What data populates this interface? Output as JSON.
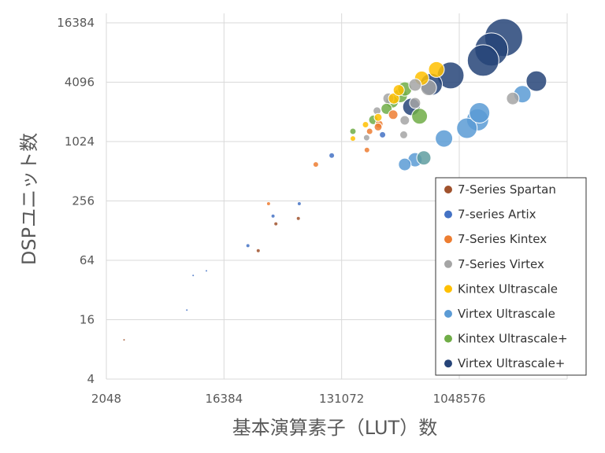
{
  "chart_data": {
    "type": "scatter",
    "title": "",
    "xlabel": "基本演算素子（LUT）数",
    "ylabel": "DSPユニット数",
    "x_scale": "log2",
    "y_scale": "log2",
    "xlim": [
      2048,
      4194304
    ],
    "ylim": [
      4,
      16384
    ],
    "x_ticks": [
      2048,
      16384,
      131072,
      1048576
    ],
    "x_tick_labels": [
      "2048",
      "16384",
      "131072",
      "1048576"
    ],
    "y_ticks": [
      4,
      16,
      64,
      256,
      1024,
      4096,
      16384
    ],
    "y_tick_labels": [
      "4",
      "16",
      "64",
      "256",
      "1024",
      "4096",
      "16384"
    ],
    "grid": true,
    "legend_position": "bottom-right",
    "bubble_size_meaning": "bubble area grows with the device size",
    "series": [
      {
        "name": "7-Series Spartan",
        "color": "#A0522D",
        "points": [
          [
            2800,
            10,
            1
          ],
          [
            30000,
            80,
            2
          ],
          [
            41000,
            150,
            2
          ],
          [
            61000,
            170,
            2
          ]
        ]
      },
      {
        "name": "7-series Artix",
        "color": "#4472C4",
        "points": [
          [
            8500,
            20,
            1
          ],
          [
            9500,
            45,
            1
          ],
          [
            12000,
            50,
            1
          ],
          [
            25000,
            90,
            2
          ],
          [
            39000,
            180,
            2
          ],
          [
            62000,
            240,
            2
          ],
          [
            110000,
            740,
            3
          ],
          [
            270000,
            1200,
            4
          ]
        ]
      },
      {
        "name": "7-Series Kintex",
        "color": "#ED7D31",
        "points": [
          [
            36000,
            240,
            2
          ],
          [
            83000,
            600,
            3
          ],
          [
            205000,
            840,
            3
          ],
          [
            215000,
            1300,
            4
          ],
          [
            254000,
            1540,
            5
          ],
          [
            250000,
            1440,
            5
          ],
          [
            326000,
            1920,
            6
          ]
        ]
      },
      {
        "name": "7-Series Virtex",
        "color": "#A5A5A5",
        "points": [
          [
            204000,
            1120,
            4
          ],
          [
            245000,
            2100,
            5
          ],
          [
            300000,
            2800,
            7
          ],
          [
            400000,
            1680,
            6
          ],
          [
            393000,
            1200,
            5
          ],
          [
            480000,
            3840,
            8
          ],
          [
            610000,
            3600,
            10
          ],
          [
            480000,
            2520,
            7
          ],
          [
            2700000,
            2800,
            8
          ]
        ]
      },
      {
        "name": "Kintex Ultrascale",
        "color": "#FFC000",
        "points": [
          [
            160000,
            1100,
            3
          ],
          [
            200000,
            1520,
            4
          ],
          [
            250000,
            1800,
            5
          ],
          [
            330000,
            2800,
            7
          ],
          [
            360000,
            3400,
            7
          ],
          [
            540000,
            4500,
            9
          ],
          [
            700000,
            5500,
            10
          ]
        ]
      },
      {
        "name": "Virtex Ultrascale",
        "color": "#5B9BD5",
        "points": [
          [
            400000,
            600,
            8
          ],
          [
            480000,
            670,
            9
          ],
          [
            800000,
            1100,
            11
          ],
          [
            1200000,
            1400,
            13
          ],
          [
            1450000,
            1700,
            14
          ],
          [
            1500000,
            2000,
            13
          ],
          [
            3200000,
            3100,
            11
          ]
        ]
      },
      {
        "name": "Kintex Ultrascale+",
        "color": "#70AD47",
        "points": [
          [
            160000,
            1300,
            4
          ],
          [
            230000,
            1700,
            6
          ],
          [
            290000,
            2200,
            7
          ],
          [
            320000,
            2600,
            8
          ],
          [
            370000,
            3000,
            9
          ],
          [
            400000,
            3500,
            9
          ],
          [
            520000,
            1850,
            10
          ]
        ]
      },
      {
        "name": "Virtex Ultrascale+",
        "color": "#264478",
        "points": [
          [
            450000,
            2300,
            11
          ],
          [
            640000,
            3900,
            14
          ],
          [
            900000,
            4800,
            17
          ],
          [
            1600000,
            6800,
            20
          ],
          [
            1850000,
            8800,
            21
          ],
          [
            2300000,
            11600,
            24
          ],
          [
            4100000,
            4200,
            13
          ]
        ]
      },
      {
        "name": "",
        "color": "#5F9EA0",
        "points": [
          [
            560000,
            700,
            9
          ]
        ]
      }
    ]
  }
}
